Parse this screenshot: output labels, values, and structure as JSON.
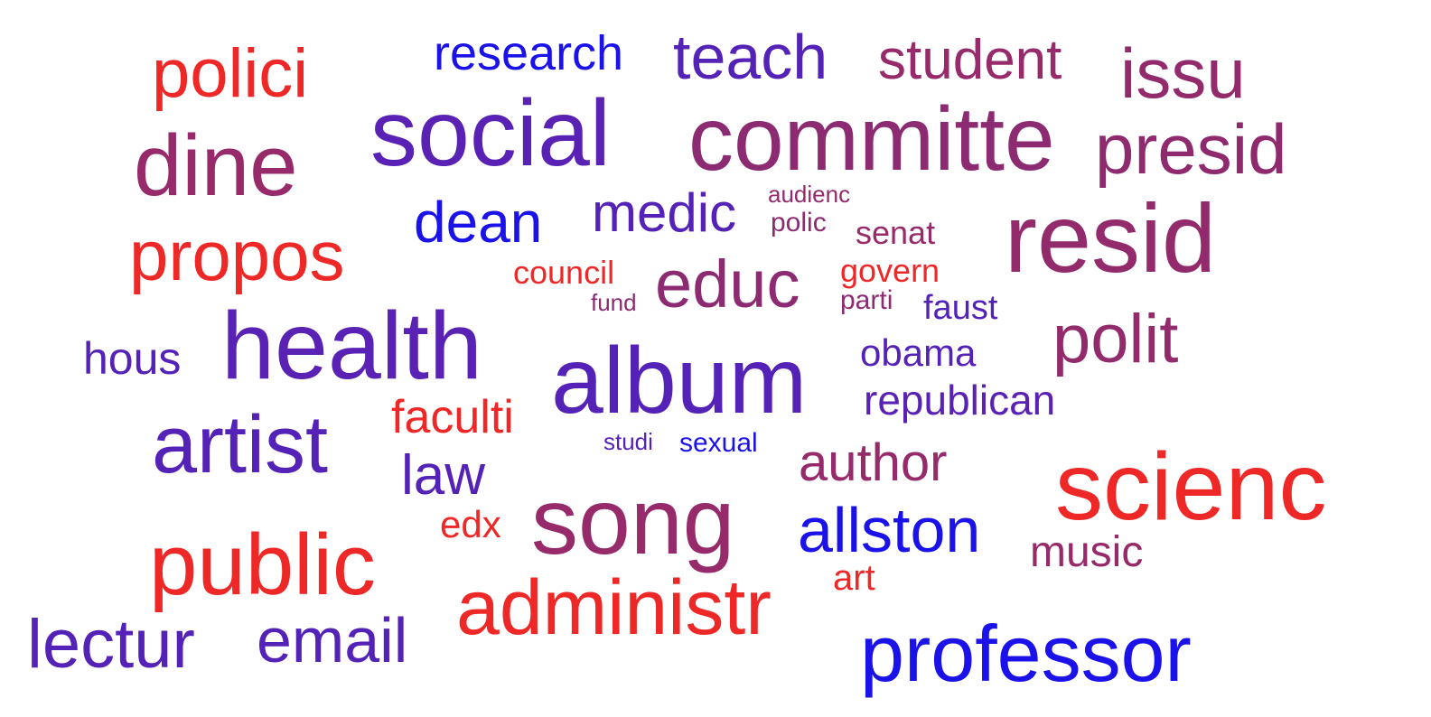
{
  "words": [
    {
      "text": "polici",
      "color": "#ee2727"
    },
    {
      "text": "research",
      "color": "#1a12e8"
    },
    {
      "text": "teach",
      "color": "#5522b8"
    },
    {
      "text": "student",
      "color": "#962a6a"
    },
    {
      "text": "issu",
      "color": "#922a6c"
    },
    {
      "text": "dine",
      "color": "#962a6a"
    },
    {
      "text": "social",
      "color": "#5a22b4"
    },
    {
      "text": "committe",
      "color": "#8c2a72"
    },
    {
      "text": "presid",
      "color": "#902a6e"
    },
    {
      "text": "dean",
      "color": "#1a12e8"
    },
    {
      "text": "medic",
      "color": "#5522b8"
    },
    {
      "text": "audienc",
      "color": "#922a6c"
    },
    {
      "text": "polic",
      "color": "#8c2a72"
    },
    {
      "text": "senat",
      "color": "#962a6a"
    },
    {
      "text": "propos",
      "color": "#ee2727"
    },
    {
      "text": "resid",
      "color": "#922a6c"
    },
    {
      "text": "council",
      "color": "#ee2727"
    },
    {
      "text": "educ",
      "color": "#8c2a72"
    },
    {
      "text": "govern",
      "color": "#ee2727"
    },
    {
      "text": "fund",
      "color": "#8c2a72"
    },
    {
      "text": "parti",
      "color": "#8c2a72"
    },
    {
      "text": "faust",
      "color": "#5522b8"
    },
    {
      "text": "hous",
      "color": "#5522b8"
    },
    {
      "text": "health",
      "color": "#5a22b4"
    },
    {
      "text": "album",
      "color": "#5522b8"
    },
    {
      "text": "obama",
      "color": "#5522b8"
    },
    {
      "text": "polit",
      "color": "#922a6c"
    },
    {
      "text": "republican",
      "color": "#5a22b4"
    },
    {
      "text": "faculti",
      "color": "#ee2727"
    },
    {
      "text": "artist",
      "color": "#5522b8"
    },
    {
      "text": "studi",
      "color": "#5522b8"
    },
    {
      "text": "sexual",
      "color": "#1a12e8"
    },
    {
      "text": "author",
      "color": "#962a6a"
    },
    {
      "text": "law",
      "color": "#5522b8"
    },
    {
      "text": "scienc",
      "color": "#ee2727"
    },
    {
      "text": "edx",
      "color": "#ee2727"
    },
    {
      "text": "song",
      "color": "#962a6a"
    },
    {
      "text": "allston",
      "color": "#1a12e8"
    },
    {
      "text": "public",
      "color": "#ee2727"
    },
    {
      "text": "music",
      "color": "#962a6a"
    },
    {
      "text": "art",
      "color": "#ee2727"
    },
    {
      "text": "administr",
      "color": "#ee2727"
    },
    {
      "text": "lectur",
      "color": "#5522b8"
    },
    {
      "text": "email",
      "color": "#5522b8"
    },
    {
      "text": "professor",
      "color": "#1a12e8"
    }
  ]
}
